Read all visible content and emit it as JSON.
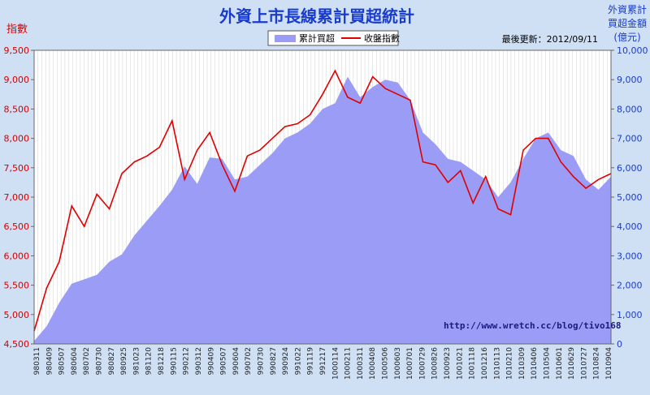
{
  "chart_data": {
    "type": "area+line",
    "title": "外資上市長線累計買超統計",
    "update_text": "最後更新：2012/09/11",
    "watermark": "http://www.wretch.cc/blog/tivo168",
    "left_axis_label": "指數",
    "right_axis_label_lines": [
      "外資累計",
      "買超金額",
      "(億元)"
    ],
    "legend": [
      {
        "name": "累計買超",
        "kind": "area",
        "color": "#9a9cf6"
      },
      {
        "name": "收盤指數",
        "kind": "line",
        "color": "#e00000"
      }
    ],
    "left_axis": {
      "min": 4500,
      "max": 9500,
      "ticks": [
        "4,500",
        "5,000",
        "5,500",
        "6,000",
        "6,500",
        "7,000",
        "7,500",
        "8,000",
        "8,500",
        "9,000",
        "9,500"
      ]
    },
    "right_axis": {
      "min": 0,
      "max": 10000,
      "ticks": [
        "0",
        "1,000",
        "2,000",
        "3,000",
        "4,000",
        "5,000",
        "6,000",
        "7,000",
        "8,000",
        "9,000",
        "10,000"
      ]
    },
    "x_labels": [
      "980311",
      "980409",
      "980507",
      "980604",
      "980702",
      "980730",
      "980827",
      "980925",
      "981023",
      "981120",
      "981218",
      "990115",
      "990212",
      "990312",
      "990409",
      "990507",
      "990604",
      "990702",
      "990730",
      "990827",
      "990924",
      "991022",
      "991119",
      "991217",
      "1000114",
      "1000211",
      "1000311",
      "1000408",
      "1000506",
      "1000603",
      "1000701",
      "1000729",
      "1000826",
      "1000923",
      "1001021",
      "1001118",
      "1001216",
      "1010113",
      "1010210",
      "1010309",
      "1010406",
      "1010504",
      "1010601",
      "1010629",
      "1010727",
      "1010824",
      "1010904"
    ],
    "index_series": {
      "name": "收盤指數",
      "values": [
        4720,
        5450,
        5900,
        6850,
        6500,
        7050,
        6800,
        7400,
        7600,
        7700,
        7850,
        8300,
        7300,
        7800,
        8100,
        7550,
        7100,
        7700,
        7800,
        8000,
        8200,
        8250,
        8400,
        8750,
        9150,
        8700,
        8600,
        9050,
        8850,
        8750,
        8650,
        7600,
        7550,
        7250,
        7450,
        6900,
        7350,
        6800,
        6700,
        7800,
        8000,
        8000,
        7600,
        7350,
        7150,
        7300,
        7400
      ]
    },
    "buy_series": {
      "name": "累計買超",
      "values": [
        100,
        600,
        1400,
        2050,
        2200,
        2350,
        2800,
        3050,
        3700,
        4200,
        4700,
        5250,
        6050,
        5450,
        6350,
        6300,
        5600,
        5700,
        6100,
        6500,
        7000,
        7200,
        7500,
        8000,
        8200,
        9100,
        8400,
        8750,
        9000,
        8900,
        8300,
        7200,
        6800,
        6300,
        6200,
        5900,
        5600,
        5000,
        5500,
        6300,
        7000,
        7200,
        6600,
        6400,
        5600,
        5250,
        5700
      ]
    },
    "colors": {
      "background": "#cfe0f5",
      "plot_background": "#ffffff",
      "title": "#1a3ccc",
      "left_axis_text": "#d40000",
      "right_axis_text": "#1a3ccc",
      "area": "#9a9cf6",
      "line": "#e00000",
      "watermark": "#1a1a80"
    }
  }
}
